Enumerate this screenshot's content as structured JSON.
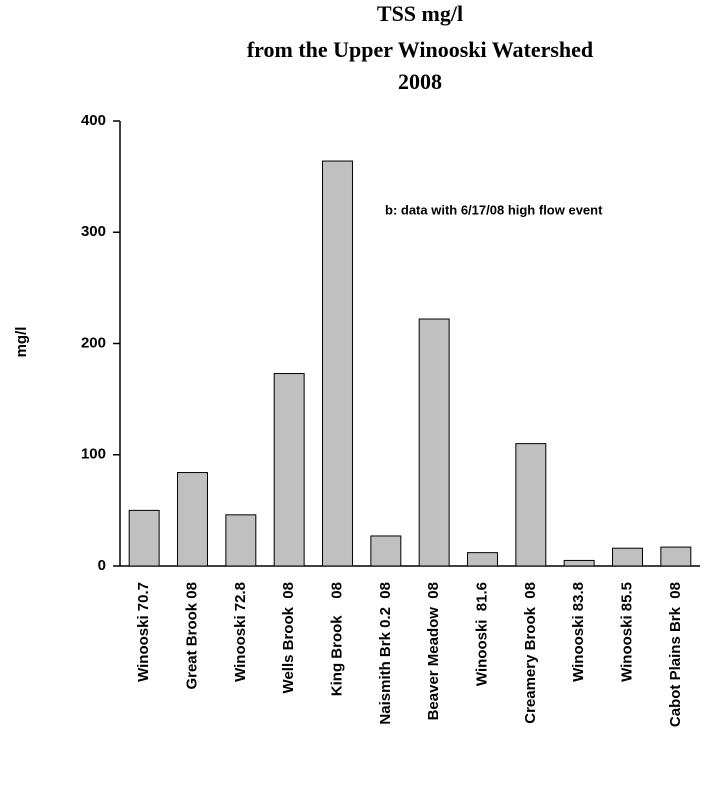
{
  "chart_data": {
    "type": "bar",
    "title": [
      "TSS mg/l",
      "from the Upper Winooski Watershed",
      "2008"
    ],
    "y_label": "mg/l",
    "annotation": "b: data with 6/17/08 high flow event",
    "categories": [
      "Winooski 70.7",
      "Great Brook 08",
      "Winooski 72.8",
      "Wells Brook  08",
      "King Brook    08",
      "Naismith Brk 0.2  08",
      "Beaver Meadow  08",
      "Winooski  81.6",
      "Creamery Brook  08",
      "Winooski 83.8",
      "Winooski 85.5",
      "Cabot Plains Brk  08"
    ],
    "values": [
      50,
      84,
      46,
      173,
      364,
      27,
      222,
      12,
      110,
      5,
      16,
      17
    ],
    "color": "#c0c0c0",
    "ylim": [
      0,
      400
    ],
    "yticks": [
      0,
      100,
      200,
      300,
      400
    ],
    "grid": false
  }
}
